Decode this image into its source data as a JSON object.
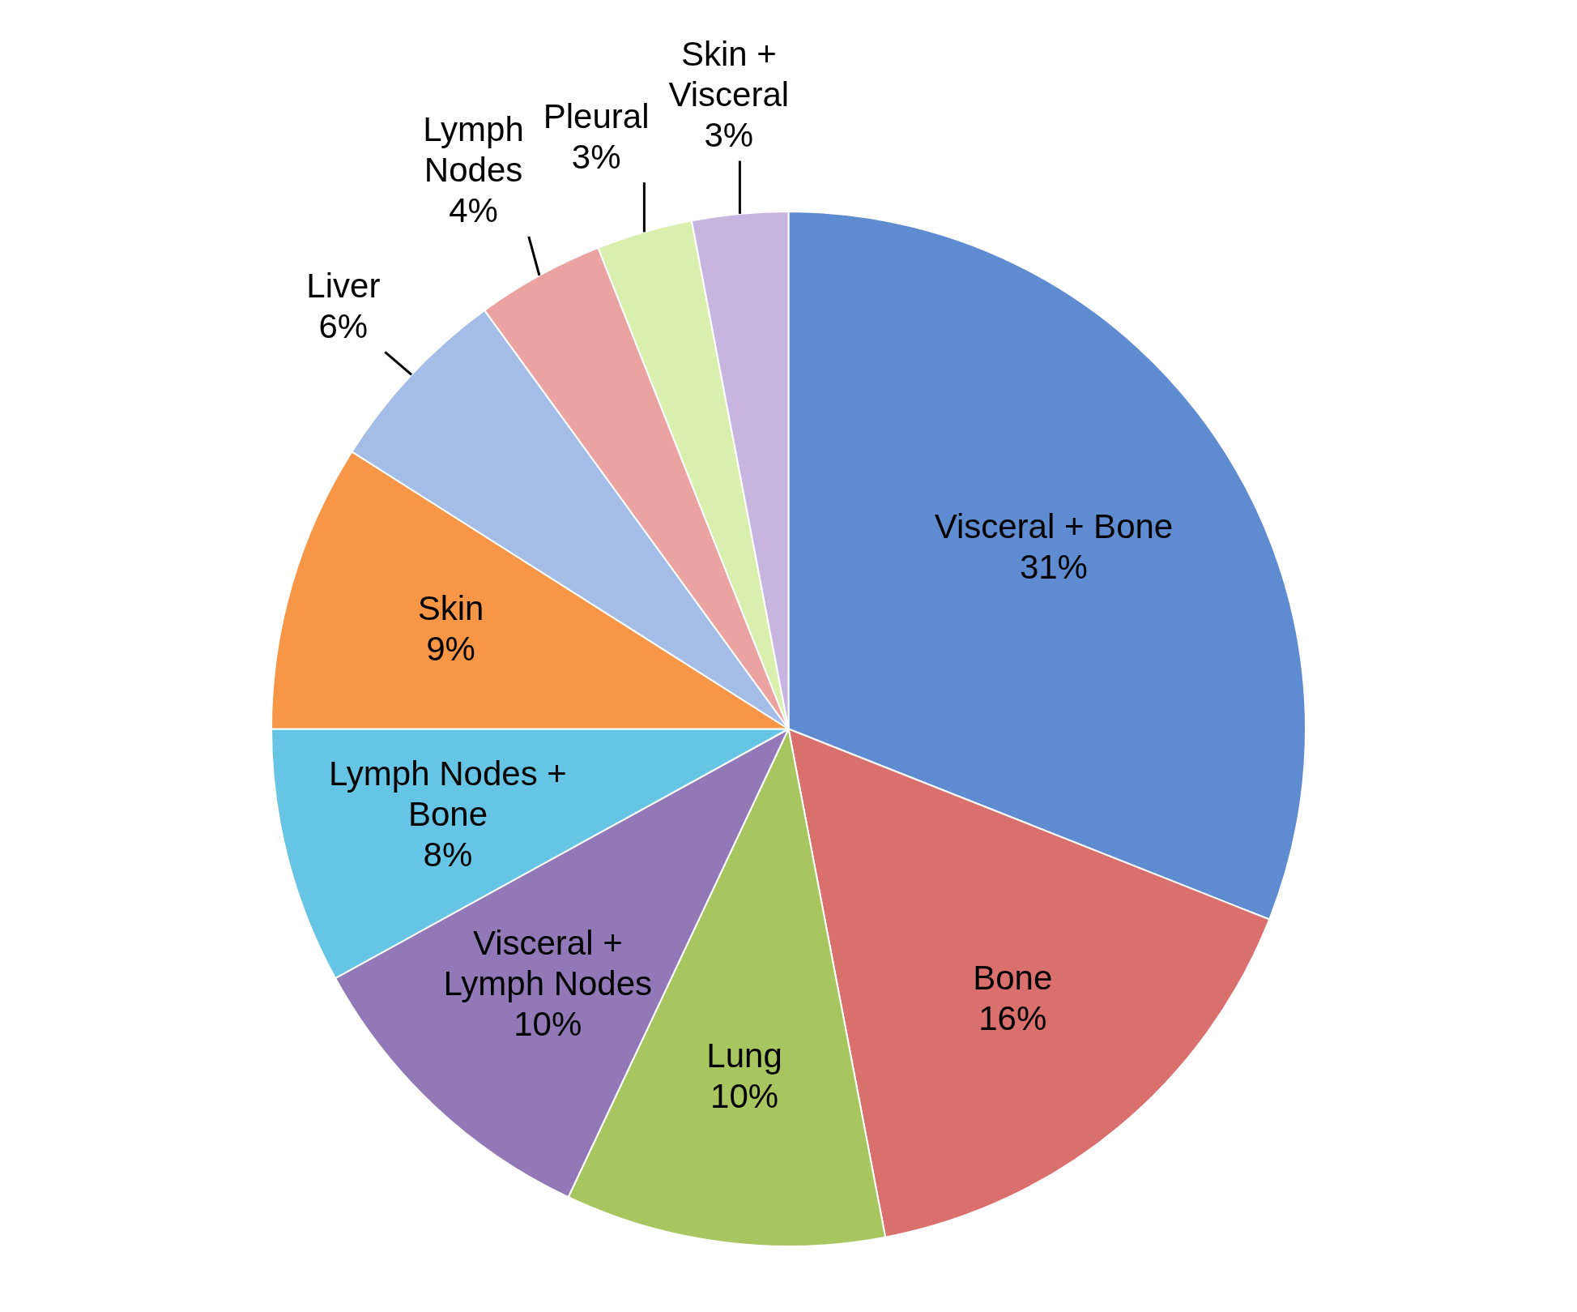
{
  "chart_data": {
    "type": "pie",
    "categories": [
      "Visceral + Bone",
      "Bone",
      "Lung",
      "Visceral + Lymph Nodes",
      "Lymph Nodes + Bone",
      "Skin",
      "Liver",
      "Lymph Nodes",
      "Pleural",
      "Skin + Visceral"
    ],
    "values": [
      31,
      16,
      10,
      10,
      8,
      9,
      6,
      4,
      3,
      3
    ],
    "value_labels": [
      "31%",
      "16%",
      "10%",
      "10%",
      "8%",
      "9%",
      "6%",
      "4%",
      "3%",
      "3%"
    ],
    "colors": [
      "#5f8bd0",
      "#d9706e",
      "#a8c65f",
      "#9278b6",
      "#66c4e4",
      "#f79646",
      "#a3bde6",
      "#eba3a2",
      "#d9efae",
      "#c8b5df"
    ]
  }
}
